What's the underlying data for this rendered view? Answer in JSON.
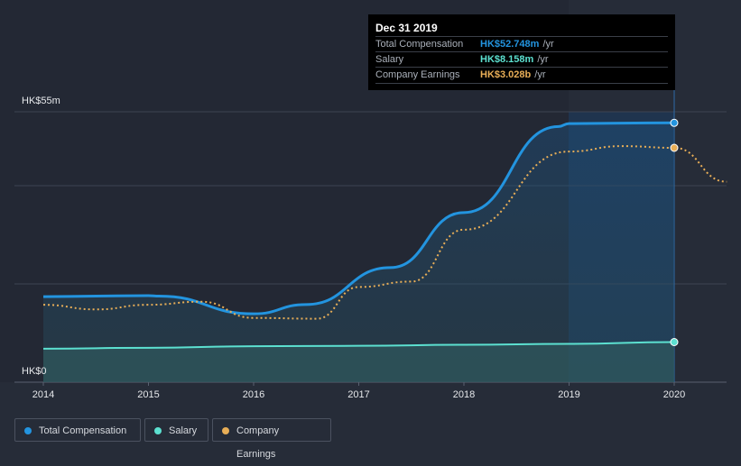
{
  "tooltip": {
    "date": "Dec 31 2019",
    "rows": [
      {
        "label": "Total Compensation",
        "value": "HK$52.748m",
        "unit": "/yr"
      },
      {
        "label": "Salary",
        "value": "HK$8.158m",
        "unit": "/yr"
      },
      {
        "label": "Company Earnings",
        "value": "HK$3.028b",
        "unit": "/yr"
      }
    ]
  },
  "legend": [
    "Total Compensation",
    "Salary",
    "Company Earnings"
  ],
  "colors": {
    "total": "#2394df",
    "salary": "#5ce0d0",
    "earnings": "#e8ae57"
  },
  "chart_data": {
    "type": "line",
    "ylabel_top": "HK$55m",
    "ylabel_bottom": "HK$0",
    "ylim": [
      0,
      55
    ],
    "x_ticks": [
      "2014",
      "2015",
      "2016",
      "2017",
      "2018",
      "2019",
      "2020"
    ],
    "series": [
      {
        "name": "Total Compensation",
        "unit": "HK$m",
        "x": [
          2014,
          2015,
          2015.1,
          2016,
          2016.5,
          2017.3,
          2018,
          2018.9,
          2019,
          2020
        ],
        "y": [
          17.4,
          17.6,
          17.5,
          13.9,
          15.8,
          23.3,
          34.5,
          52.0,
          52.6,
          52.748
        ]
      },
      {
        "name": "Salary",
        "unit": "HK$m",
        "x": [
          2014,
          2015,
          2016,
          2017,
          2018,
          2019,
          2020
        ],
        "y": [
          6.8,
          7.0,
          7.3,
          7.4,
          7.6,
          7.8,
          8.158
        ]
      },
      {
        "name": "Company Earnings",
        "unit": "HK$b",
        "x": [
          2014,
          2014.5,
          2015,
          2015.5,
          2016,
          2016.6,
          2017,
          2017.5,
          2018,
          2019,
          2019.5,
          2020,
          2020.5
        ],
        "y": [
          1.0,
          0.94,
          1.0,
          1.04,
          0.83,
          0.82,
          1.23,
          1.3,
          1.97,
          2.98,
          3.05,
          3.028,
          2.59
        ]
      }
    ]
  }
}
